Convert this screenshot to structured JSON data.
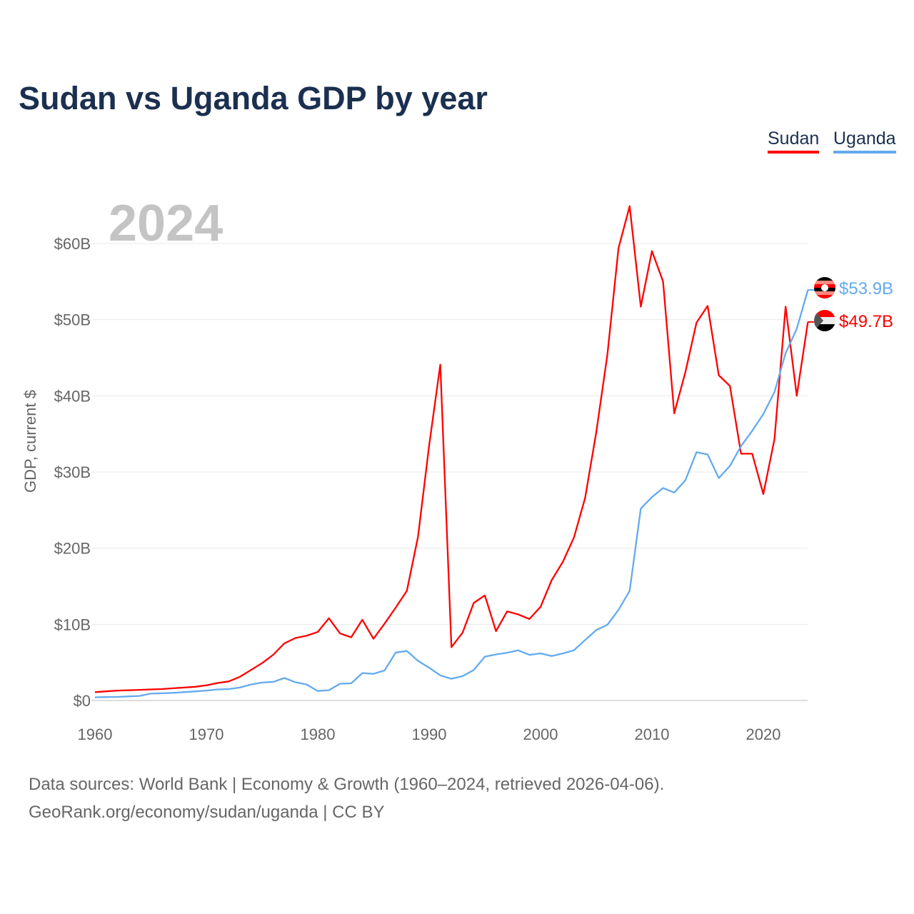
{
  "chart_data": {
    "type": "line",
    "title": "Sudan vs Uganda GDP by year",
    "xlabel": "",
    "ylabel": "GDP, current $",
    "year_watermark": "2024",
    "xlim": [
      1960,
      2024
    ],
    "ylim": [
      0,
      65
    ],
    "x_ticks": [
      1960,
      1970,
      1980,
      1990,
      2000,
      2010,
      2020
    ],
    "y_ticks": [
      0,
      10,
      20,
      30,
      40,
      50,
      60
    ],
    "y_tick_labels": [
      "$0",
      "$10B",
      "$20B",
      "$30B",
      "$40B",
      "$50B",
      "$60B"
    ],
    "grid": true,
    "legend_position": "top-right",
    "x": [
      1960,
      1961,
      1962,
      1963,
      1964,
      1965,
      1966,
      1967,
      1968,
      1969,
      1970,
      1971,
      1972,
      1973,
      1974,
      1975,
      1976,
      1977,
      1978,
      1979,
      1980,
      1981,
      1982,
      1983,
      1984,
      1985,
      1986,
      1987,
      1988,
      1989,
      1990,
      1991,
      1992,
      1993,
      1994,
      1995,
      1996,
      1997,
      1998,
      1999,
      2000,
      2001,
      2002,
      2003,
      2004,
      2005,
      2006,
      2007,
      2008,
      2009,
      2010,
      2011,
      2012,
      2013,
      2014,
      2015,
      2016,
      2017,
      2018,
      2019,
      2020,
      2021,
      2022,
      2023,
      2024
    ],
    "series": [
      {
        "name": "Sudan",
        "color": "#ff0000",
        "end_label": "$49.7B",
        "flag": "sudan-flag",
        "values": [
          1.1,
          1.2,
          1.3,
          1.35,
          1.4,
          1.45,
          1.5,
          1.6,
          1.7,
          1.8,
          2.0,
          2.3,
          2.5,
          3.1,
          4.0,
          4.9,
          6.0,
          7.5,
          8.2,
          8.5,
          9.0,
          10.8,
          8.8,
          8.3,
          10.6,
          8.1,
          10.1,
          12.2,
          14.4,
          21.5,
          33.5,
          44.1,
          7.0,
          8.9,
          12.8,
          13.8,
          9.1,
          11.7,
          11.3,
          10.7,
          12.3,
          15.8,
          18.2,
          21.4,
          26.6,
          35.2,
          45.4,
          59.4,
          64.9,
          51.7,
          59.0,
          55.0,
          37.7,
          43.1,
          49.6,
          51.8,
          42.7,
          41.3,
          32.4,
          32.4,
          27.1,
          34.3,
          51.7,
          40.0,
          49.7
        ]
      },
      {
        "name": "Uganda",
        "color": "#64aaee",
        "end_label": "$53.9B",
        "flag": "uganda-flag",
        "values": [
          0.42,
          0.45,
          0.47,
          0.53,
          0.6,
          0.9,
          0.95,
          1.0,
          1.1,
          1.2,
          1.3,
          1.45,
          1.5,
          1.7,
          2.1,
          2.35,
          2.45,
          2.95,
          2.4,
          2.1,
          1.25,
          1.35,
          2.2,
          2.25,
          3.6,
          3.5,
          3.95,
          6.3,
          6.5,
          5.2,
          4.3,
          3.3,
          2.85,
          3.2,
          3.99,
          5.76,
          6.05,
          6.27,
          6.58,
          5.99,
          6.19,
          5.84,
          6.18,
          6.6,
          7.94,
          9.24,
          9.94,
          11.9,
          14.4,
          25.2,
          26.7,
          27.9,
          27.3,
          28.9,
          32.6,
          32.3,
          29.2,
          30.8,
          33.4,
          35.4,
          37.6,
          40.5,
          45.6,
          48.8,
          53.9
        ]
      }
    ]
  },
  "footer": {
    "line1": "Data sources: World Bank | Economy & Growth (1960–2024, retrieved 2026-04-06).",
    "line2": "GeoRank.org/economy/sudan/uganda | CC BY"
  }
}
